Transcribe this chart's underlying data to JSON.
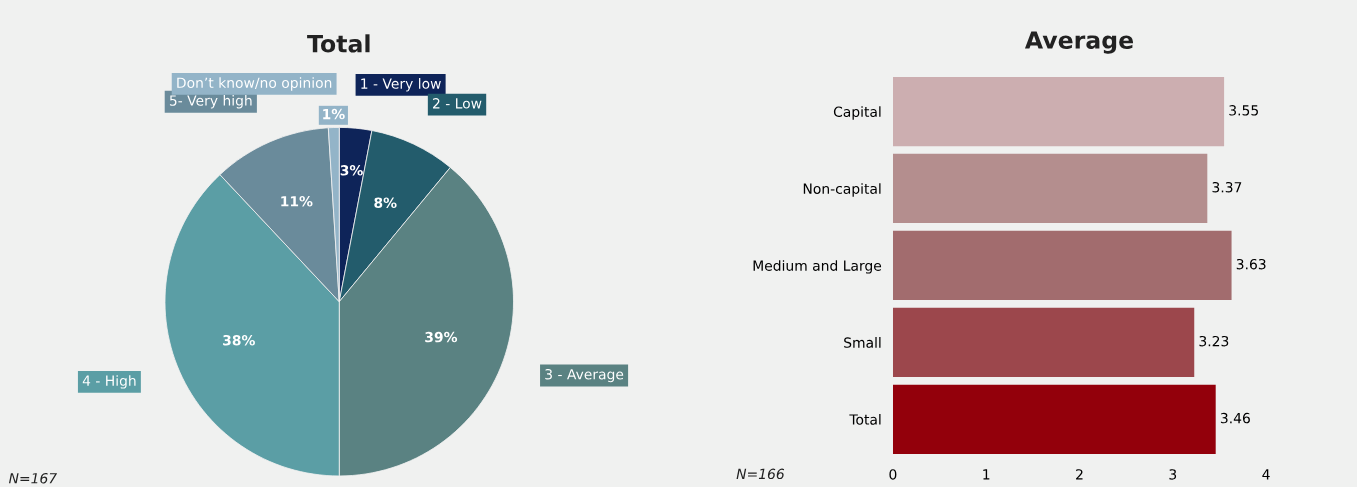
{
  "chart_data": [
    {
      "type": "pie",
      "title": "Total",
      "categories": [
        "1 - Very low",
        "2 - Low",
        "3 - Average",
        "4 - High",
        "5- Very high",
        "Don’t know/no opinion"
      ],
      "values": [
        3,
        8,
        39,
        38,
        11,
        1
      ],
      "value_labels": [
        "3%",
        "8%",
        "39%",
        "38%",
        "11%",
        "1%"
      ],
      "colors": [
        "#0e2459",
        "#235c6c",
        "#5a8282",
        "#5b9ea5",
        "#6a8b9b",
        "#93b4c8"
      ],
      "annotations": [
        "N=167"
      ]
    },
    {
      "type": "bar",
      "title": "Average",
      "orientation": "horizontal",
      "categories": [
        "Capital",
        "Non-capital",
        "Medium and Large",
        "Small",
        "Total"
      ],
      "values": [
        3.55,
        3.37,
        3.63,
        3.23,
        3.46
      ],
      "colors": [
        "#ccaeb0",
        "#b48e8e",
        "#a26c6e",
        "#9c474c",
        "#93000b"
      ],
      "xlim": [
        0,
        4
      ],
      "xticks": [
        0,
        1,
        2,
        3,
        4
      ],
      "data_labels": true,
      "annotations": [
        "N=166"
      ]
    }
  ]
}
